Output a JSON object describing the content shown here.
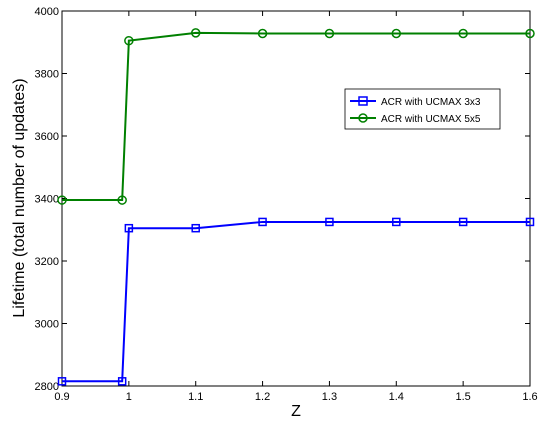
{
  "chart_data": {
    "type": "line",
    "xlabel": "Z",
    "ylabel": "Lifetime (total number of updates)",
    "xlim": [
      0.9,
      1.6
    ],
    "ylim": [
      2800,
      4000
    ],
    "xticks": [
      0.9,
      1,
      1.1,
      1.2,
      1.3,
      1.4,
      1.5,
      1.6
    ],
    "xtick_labels": [
      "0.9",
      "1",
      "1.1",
      "1.2",
      "1.3",
      "1.4",
      "1.5",
      "1.6"
    ],
    "yticks": [
      2800,
      3000,
      3200,
      3400,
      3600,
      3800,
      4000
    ],
    "ytick_labels": [
      "2800",
      "3000",
      "3200",
      "3400",
      "3600",
      "3800",
      "4000"
    ],
    "grid": false,
    "legend_position": "top-right",
    "series": [
      {
        "name": "ACR with UCMAX 3x3",
        "color": "#0000ff",
        "marker": "square",
        "x": [
          0.9,
          0.99,
          1.0,
          1.1,
          1.2,
          1.3,
          1.4,
          1.5,
          1.6
        ],
        "y": [
          2815,
          2815,
          3305,
          3305,
          3325,
          3325,
          3325,
          3325,
          3325
        ]
      },
      {
        "name": "ACR with UCMAX 5x5",
        "color": "#008000",
        "marker": "circle",
        "x": [
          0.9,
          0.99,
          1.0,
          1.1,
          1.2,
          1.3,
          1.4,
          1.5,
          1.6
        ],
        "y": [
          3395,
          3395,
          3905,
          3930,
          3928,
          3928,
          3928,
          3928,
          3928
        ]
      }
    ]
  }
}
